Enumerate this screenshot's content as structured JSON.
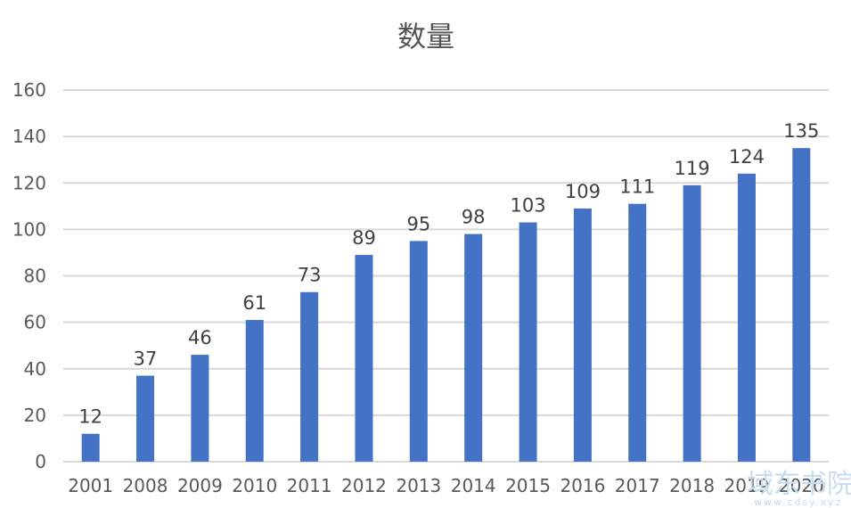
{
  "chart_data": {
    "type": "bar",
    "title": "数量",
    "xlabel": "",
    "ylabel": "",
    "categories": [
      "2001",
      "2008",
      "2009",
      "2010",
      "2011",
      "2012",
      "2013",
      "2014",
      "2015",
      "2016",
      "2017",
      "2018",
      "2019",
      "2020"
    ],
    "values": [
      12,
      37,
      46,
      61,
      73,
      89,
      95,
      98,
      103,
      109,
      111,
      119,
      124,
      135
    ],
    "ylim": [
      0,
      160
    ],
    "yticks": [
      0,
      20,
      40,
      60,
      80,
      100,
      120,
      140,
      160
    ],
    "grid": true,
    "legend": "none",
    "bar_color": "#4472c4",
    "data_labels": true
  },
  "watermark": {
    "text": "域东书院",
    "sub": "www.cdsy.xyz"
  }
}
